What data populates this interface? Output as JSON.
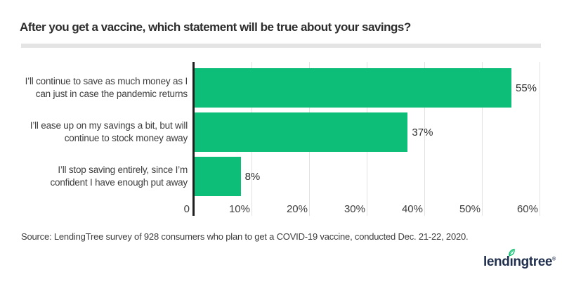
{
  "page": {
    "title": "After you get a vaccine, which statement will be true about your savings?",
    "source_note": "Source: LendingTree survey of 928 consumers who plan to get a COVID-19 vaccine, conducted Dec. 21-22, 2020."
  },
  "chart_data": {
    "type": "bar",
    "orientation": "horizontal",
    "title": "After you get a vaccine, which statement will be true about your savings?",
    "categories": [
      "I’ll continue to save as much money as I can just in case the pandemic returns",
      "I’ll ease up on my savings a bit, but will continue to stock money away",
      "I’ll stop saving entirely, since I’m confident I have enough put away"
    ],
    "category_lines": [
      [
        "I’ll continue to save as much money as I",
        "can just in case the pandemic returns"
      ],
      [
        "I’ll ease up on my savings a bit, but will",
        "continue to stock money away"
      ],
      [
        "I’ll stop saving entirely, since I’m",
        "confident I have enough put away"
      ]
    ],
    "values": [
      55,
      37,
      8
    ],
    "value_labels": [
      "55%",
      "37%",
      "8%"
    ],
    "xlabel": "",
    "ylabel": "",
    "xlim": [
      0,
      60
    ],
    "xtick_values": [
      0,
      10,
      20,
      30,
      40,
      50,
      60
    ],
    "xtick_labels": [
      "0",
      "10%",
      "20%",
      "30%",
      "40%",
      "50%",
      "60%"
    ],
    "grid": "vertical gridlines on",
    "legend": "none",
    "bar_color": "#0dbe78"
  },
  "logo": {
    "name": "lendingtree",
    "brand_prefix": "lend",
    "brand_i": "ı",
    "brand_suffix": "ngtree",
    "registered_mark": "®"
  },
  "colors": {
    "bar_green": "#0dbe78",
    "leaf_green": "#00c06b",
    "logo_navy": "#1f2f4d",
    "axis_line": "#1f1f1f",
    "gridline": "#e2e2e2",
    "divider": "#e4e4e4",
    "title_text": "#2d2d2d",
    "body_text": "#3d3d3d"
  }
}
